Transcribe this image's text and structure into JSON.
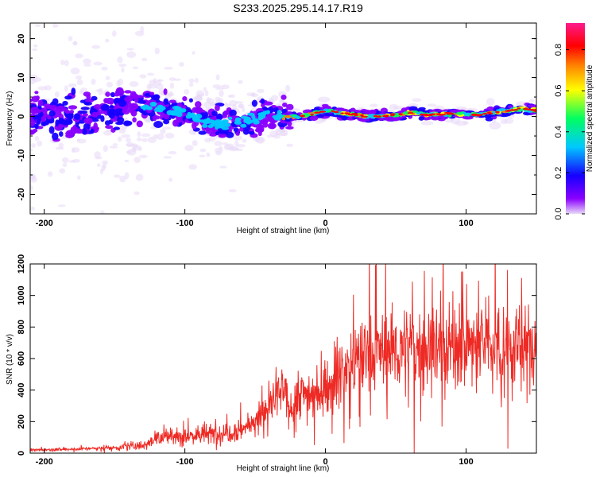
{
  "title": "S233.2025.295.14.17.R19",
  "chart_data": [
    {
      "type": "heatmap",
      "name": "spectrogram",
      "xlabel": "Height of straight line (km)",
      "ylabel": "Frequency (Hz)",
      "xlim": [
        -210,
        150
      ],
      "ylim": [
        -25,
        24
      ],
      "xticks": [
        "-200",
        "-100",
        "0",
        "100"
      ],
      "xtick_values": [
        -200,
        -100,
        0,
        100
      ],
      "yticks": [
        "20",
        "10",
        "0",
        "-10",
        "-20"
      ],
      "ytick_values": [
        20,
        10,
        0,
        -10,
        -20
      ],
      "colorbar": {
        "label": "Normalized spectral amplitude",
        "range": [
          0.0,
          0.93
        ],
        "ticks": [
          "0.0",
          "0.2",
          "0.4",
          "0.6",
          "0.8"
        ],
        "tick_values": [
          0.0,
          0.2,
          0.4,
          0.6,
          0.8
        ],
        "colormap": [
          "#e8d9f7",
          "#8a00ff",
          "#1600ff",
          "#00c8ff",
          "#00ff60",
          "#ffff00",
          "#ff8000",
          "#ff0000",
          "#ff1a8c"
        ]
      },
      "ridge": {
        "x": [
          -210,
          -180,
          -150,
          -125,
          -100,
          -85,
          -70,
          -60,
          -50,
          -40,
          -30,
          -20,
          -10,
          0,
          10,
          20,
          30,
          40,
          50,
          60,
          70,
          80,
          90,
          100,
          110,
          120,
          130,
          140,
          150
        ],
        "y": [
          0,
          0,
          1.5,
          2.5,
          1,
          -1.5,
          -2,
          -1,
          -0.5,
          1,
          -0.2,
          0,
          0.5,
          1.5,
          1,
          0.5,
          0,
          0.2,
          0.5,
          1,
          0.5,
          0.5,
          0.8,
          0.5,
          0.5,
          1,
          1.5,
          2,
          1.5
        ]
      }
    },
    {
      "type": "line",
      "name": "snr",
      "xlabel": "Height of straight line (km)",
      "ylabel": "SNR (10 * v/v)",
      "xlim": [
        -210,
        150
      ],
      "ylim": [
        0,
        1200
      ],
      "xticks": [
        "-200",
        "-100",
        "0",
        "100"
      ],
      "xtick_values": [
        -200,
        -100,
        0,
        100
      ],
      "yticks": [
        "0",
        "200",
        "400",
        "600",
        "800",
        "1000",
        "1200"
      ],
      "ytick_values": [
        0,
        200,
        400,
        600,
        800,
        1000,
        1200
      ],
      "color": "#ee2a24",
      "trend": {
        "x": [
          -210,
          -180,
          -150,
          -130,
          -120,
          -100,
          -80,
          -60,
          -50,
          -40,
          -30,
          -25,
          -20,
          -10,
          0,
          10,
          20,
          30,
          40,
          60,
          80,
          100,
          120,
          140,
          150
        ],
        "y": [
          20,
          25,
          35,
          50,
          100,
          110,
          120,
          150,
          200,
          300,
          400,
          250,
          380,
          380,
          400,
          500,
          580,
          620,
          650,
          660,
          680,
          680,
          700,
          650,
          700
        ]
      }
    }
  ]
}
